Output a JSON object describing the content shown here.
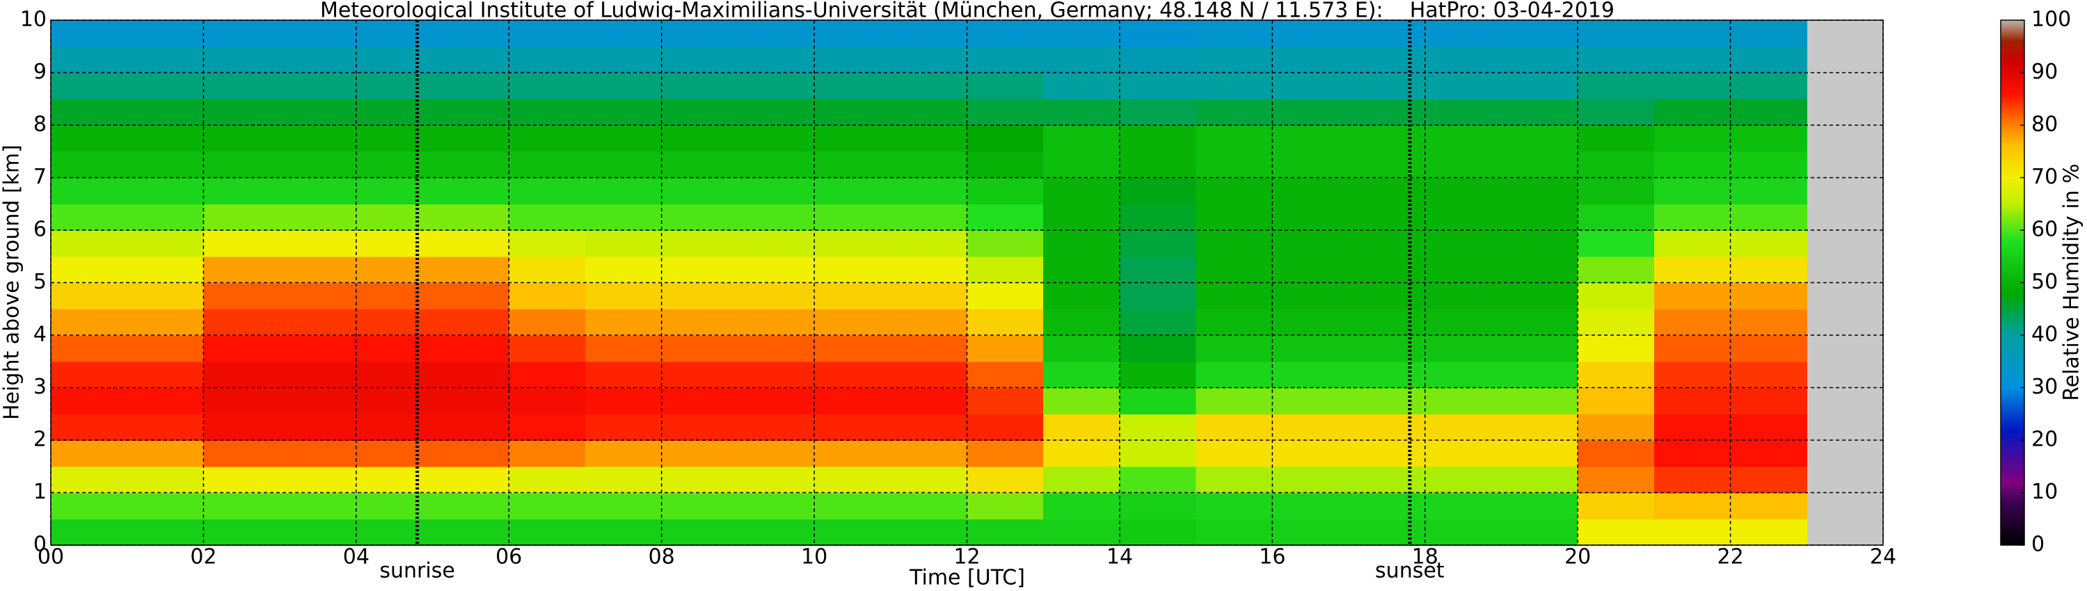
{
  "chart_data": {
    "type": "heatmap",
    "title": "Meteorological Institute of Ludwig-Maximilians-Universität (München, Germany; 48.148 N / 11.573 E):    HatPro: 03-04-2019",
    "x_label": "Time [UTC]",
    "y_label": "Height above ground [km]",
    "colorbar_label": "Relative Humidity in %",
    "x_bins": [
      0,
      1,
      2,
      3,
      4,
      5,
      6,
      7,
      8,
      9,
      10,
      11,
      12,
      13,
      14,
      15,
      16,
      17,
      18,
      19,
      20,
      21,
      22,
      23
    ],
    "y_bins": [
      0,
      0.5,
      1,
      1.5,
      2,
      2.5,
      3,
      3.5,
      4,
      4.5,
      5,
      5.5,
      6,
      6.5,
      7,
      7.5,
      8,
      8.5,
      9,
      9.5,
      10
    ],
    "z": [
      [
        55,
        60,
        68,
        78,
        85,
        86,
        85,
        82,
        78,
        74,
        70,
        66,
        60,
        56,
        52,
        50,
        46,
        42,
        38,
        33
      ],
      [
        55,
        60,
        68,
        78,
        85,
        86,
        85,
        82,
        78,
        74,
        70,
        66,
        60,
        56,
        52,
        50,
        46,
        42,
        38,
        33
      ],
      [
        55,
        60,
        70,
        82,
        87,
        88,
        88,
        86,
        84,
        82,
        78,
        70,
        62,
        56,
        52,
        50,
        46,
        42,
        38,
        33
      ],
      [
        55,
        60,
        70,
        82,
        87,
        88,
        88,
        86,
        84,
        82,
        78,
        70,
        62,
        56,
        52,
        50,
        46,
        42,
        38,
        33
      ],
      [
        55,
        60,
        70,
        82,
        87,
        88,
        88,
        86,
        84,
        82,
        78,
        70,
        62,
        56,
        52,
        50,
        46,
        42,
        38,
        33
      ],
      [
        55,
        60,
        70,
        82,
        87,
        88,
        88,
        86,
        84,
        82,
        78,
        70,
        62,
        56,
        52,
        50,
        46,
        42,
        38,
        33
      ],
      [
        55,
        60,
        68,
        80,
        86,
        87,
        86,
        84,
        80,
        76,
        72,
        67,
        60,
        56,
        52,
        50,
        46,
        42,
        38,
        33
      ],
      [
        55,
        60,
        68,
        78,
        85,
        86,
        85,
        82,
        78,
        74,
        70,
        66,
        60,
        56,
        52,
        50,
        46,
        42,
        38,
        33
      ],
      [
        55,
        60,
        68,
        78,
        85,
        86,
        85,
        82,
        78,
        74,
        70,
        66,
        60,
        56,
        52,
        50,
        46,
        42,
        38,
        33
      ],
      [
        55,
        60,
        68,
        78,
        85,
        86,
        85,
        82,
        78,
        74,
        70,
        66,
        60,
        56,
        52,
        50,
        46,
        42,
        38,
        33
      ],
      [
        55,
        60,
        68,
        78,
        85,
        86,
        85,
        82,
        78,
        74,
        70,
        66,
        60,
        56,
        52,
        50,
        46,
        42,
        38,
        33
      ],
      [
        55,
        60,
        68,
        78,
        85,
        86,
        85,
        82,
        78,
        74,
        70,
        66,
        60,
        56,
        52,
        50,
        46,
        42,
        38,
        33
      ],
      [
        55,
        62,
        72,
        80,
        85,
        84,
        82,
        78,
        74,
        70,
        66,
        62,
        58,
        54,
        50,
        48,
        45,
        42,
        38,
        33
      ],
      [
        55,
        56,
        64,
        72,
        73,
        62,
        56,
        53,
        51,
        50,
        50,
        50,
        50,
        50,
        52,
        52,
        45,
        40,
        38,
        33
      ],
      [
        54,
        55,
        60,
        66,
        66,
        56,
        50,
        47,
        45,
        44,
        44,
        45,
        46,
        47,
        50,
        50,
        44,
        40,
        37,
        32
      ],
      [
        55,
        56,
        64,
        72,
        73,
        62,
        56,
        53,
        51,
        50,
        50,
        50,
        50,
        50,
        52,
        52,
        45,
        40,
        38,
        33
      ],
      [
        55,
        56,
        64,
        72,
        73,
        62,
        56,
        53,
        51,
        50,
        50,
        50,
        50,
        50,
        52,
        52,
        45,
        40,
        38,
        33
      ],
      [
        55,
        56,
        64,
        72,
        73,
        62,
        56,
        53,
        51,
        50,
        50,
        50,
        50,
        50,
        52,
        52,
        45,
        40,
        38,
        33
      ],
      [
        55,
        56,
        64,
        72,
        73,
        62,
        56,
        53,
        51,
        50,
        50,
        50,
        50,
        50,
        52,
        52,
        45,
        40,
        38,
        33
      ],
      [
        55,
        56,
        64,
        72,
        73,
        62,
        56,
        53,
        51,
        50,
        50,
        50,
        50,
        50,
        52,
        52,
        45,
        40,
        38,
        33
      ],
      [
        70,
        74,
        80,
        82,
        78,
        76,
        74,
        70,
        68,
        66,
        62,
        58,
        55,
        52,
        52,
        50,
        44,
        42,
        38,
        34
      ],
      [
        70,
        76,
        84,
        86,
        86,
        85,
        84,
        82,
        80,
        78,
        72,
        66,
        60,
        56,
        54,
        52,
        46,
        42,
        38,
        34
      ],
      [
        70,
        76,
        84,
        86,
        86,
        85,
        84,
        82,
        80,
        78,
        72,
        66,
        60,
        56,
        54,
        52,
        46,
        42,
        38,
        34
      ]
    ],
    "xlim": [
      0,
      24
    ],
    "ylim": [
      0,
      10
    ],
    "clim": [
      0,
      100
    ],
    "xticks": [
      {
        "value": 0,
        "label": "00"
      },
      {
        "value": 2,
        "label": "02"
      },
      {
        "value": 4,
        "label": "04"
      },
      {
        "value": 6,
        "label": "06"
      },
      {
        "value": 8,
        "label": "08"
      },
      {
        "value": 10,
        "label": "10"
      },
      {
        "value": 12,
        "label": "12"
      },
      {
        "value": 14,
        "label": "14"
      },
      {
        "value": 16,
        "label": "16"
      },
      {
        "value": 18,
        "label": "18"
      },
      {
        "value": 20,
        "label": "20"
      },
      {
        "value": 22,
        "label": "22"
      },
      {
        "value": 24,
        "label": "24"
      }
    ],
    "yticks": [
      0,
      1,
      2,
      3,
      4,
      5,
      6,
      7,
      8,
      9,
      10
    ],
    "cticks": [
      0,
      10,
      20,
      30,
      40,
      50,
      60,
      70,
      80,
      90,
      100
    ],
    "colorscale": [
      {
        "value": 0,
        "color": "#000000"
      },
      {
        "value": 8,
        "color": "#3a0050"
      },
      {
        "value": 12,
        "color": "#800080"
      },
      {
        "value": 22,
        "color": "#0018c0"
      },
      {
        "value": 30,
        "color": "#0090e0"
      },
      {
        "value": 40,
        "color": "#00a0a0"
      },
      {
        "value": 48,
        "color": "#00a800"
      },
      {
        "value": 58,
        "color": "#20e020"
      },
      {
        "value": 65,
        "color": "#c0f000"
      },
      {
        "value": 70,
        "color": "#f0f000"
      },
      {
        "value": 76,
        "color": "#ffc000"
      },
      {
        "value": 81,
        "color": "#ff7000"
      },
      {
        "value": 86,
        "color": "#ff1000"
      },
      {
        "value": 92,
        "color": "#d00000"
      },
      {
        "value": 96,
        "color": "#a02000"
      },
      {
        "value": 100,
        "color": "#b8b8a8"
      }
    ],
    "missing_color": "#c8c8c8",
    "grid": true,
    "annotations": [
      {
        "text": "sunrise",
        "x": 4.8
      },
      {
        "text": "sunset",
        "x": 17.8
      }
    ]
  }
}
